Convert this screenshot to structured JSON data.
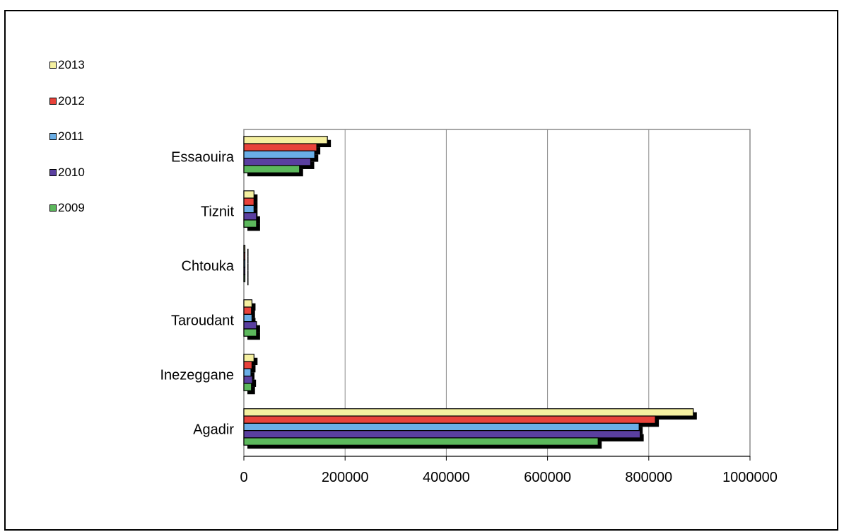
{
  "chart_data": {
    "type": "bar",
    "orientation": "horizontal",
    "categories": [
      "Agadir",
      "Inezeggane",
      "Taroudant",
      "Chtouka",
      "Tiznit",
      "Essaouira"
    ],
    "series": [
      {
        "name": "2009",
        "color": "#5cb85c",
        "values": [
          700000,
          15000,
          25000,
          1000,
          25000,
          110000
        ]
      },
      {
        "name": "2010",
        "color": "#5a3fa0",
        "values": [
          783000,
          17000,
          25000,
          2000,
          25000,
          132000
        ]
      },
      {
        "name": "2011",
        "color": "#6aaee6",
        "values": [
          781000,
          14000,
          16000,
          1500,
          20000,
          140000
        ]
      },
      {
        "name": "2012",
        "color": "#e8423a",
        "values": [
          813000,
          16000,
          15000,
          1500,
          20000,
          144000
        ]
      },
      {
        "name": "2013",
        "color": "#f5f0a0",
        "values": [
          888000,
          20000,
          16000,
          1500,
          20000,
          165000
        ]
      }
    ],
    "xlim": [
      0,
      1000000
    ],
    "ticks": [
      "0",
      "200000",
      "400000",
      "600000",
      "800000",
      "1000000"
    ],
    "tick_values": [
      0,
      200000,
      400000,
      600000,
      800000,
      1000000
    ],
    "grid": true,
    "legend_position": "top-left",
    "title": "",
    "xlabel": "",
    "ylabel": ""
  }
}
